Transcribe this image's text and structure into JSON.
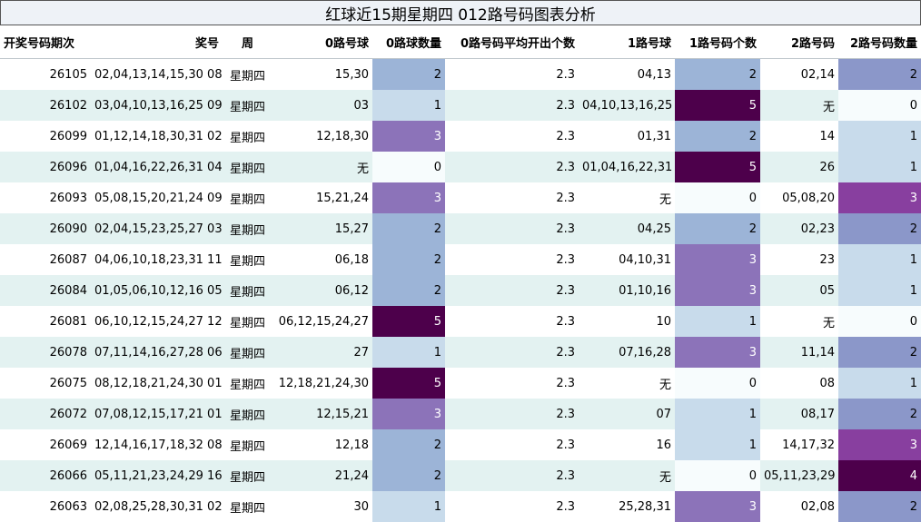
{
  "title": "红球近15期星期四 012路号码图表分析",
  "columns": [
    "开奖号码期次",
    "奖号",
    "周",
    "0路号球",
    "0路球数量",
    "0路号码平均开出个数",
    "1路号球",
    "1路号码个数",
    "2路号码",
    "2路号码数量"
  ],
  "colors": {
    "count_0": "#f7fcfd",
    "count_1": "#c8dbeb",
    "count_2": "#9cb4d7",
    "count_3": "#8c73b9",
    "count_4": "#4d004b",
    "count_5": "#4d004b",
    "count_2_col10": "#8b97c9",
    "count_3_col10": "#883f9f"
  },
  "rows": [
    {
      "issue": "26105",
      "numbers": "02,04,13,14,15,30 08",
      "week": "星期四",
      "r0": "15,30",
      "r0n": "2",
      "avg": "2.3",
      "r1": "04,13",
      "r1n": "2",
      "r2": "02,14",
      "r2n": "2"
    },
    {
      "issue": "26102",
      "numbers": "03,04,10,13,16,25 09",
      "week": "星期四",
      "r0": "03",
      "r0n": "1",
      "avg": "2.3",
      "r1": "04,10,13,16,25",
      "r1n": "5",
      "r2": "无",
      "r2n": "0"
    },
    {
      "issue": "26099",
      "numbers": "01,12,14,18,30,31 02",
      "week": "星期四",
      "r0": "12,18,30",
      "r0n": "3",
      "avg": "2.3",
      "r1": "01,31",
      "r1n": "2",
      "r2": "14",
      "r2n": "1"
    },
    {
      "issue": "26096",
      "numbers": "01,04,16,22,26,31 04",
      "week": "星期四",
      "r0": "无",
      "r0n": "0",
      "avg": "2.3",
      "r1": "01,04,16,22,31",
      "r1n": "5",
      "r2": "26",
      "r2n": "1"
    },
    {
      "issue": "26093",
      "numbers": "05,08,15,20,21,24 09",
      "week": "星期四",
      "r0": "15,21,24",
      "r0n": "3",
      "avg": "2.3",
      "r1": "无",
      "r1n": "0",
      "r2": "05,08,20",
      "r2n": "3"
    },
    {
      "issue": "26090",
      "numbers": "02,04,15,23,25,27 03",
      "week": "星期四",
      "r0": "15,27",
      "r0n": "2",
      "avg": "2.3",
      "r1": "04,25",
      "r1n": "2",
      "r2": "02,23",
      "r2n": "2"
    },
    {
      "issue": "26087",
      "numbers": "04,06,10,18,23,31 11",
      "week": "星期四",
      "r0": "06,18",
      "r0n": "2",
      "avg": "2.3",
      "r1": "04,10,31",
      "r1n": "3",
      "r2": "23",
      "r2n": "1"
    },
    {
      "issue": "26084",
      "numbers": "01,05,06,10,12,16 05",
      "week": "星期四",
      "r0": "06,12",
      "r0n": "2",
      "avg": "2.3",
      "r1": "01,10,16",
      "r1n": "3",
      "r2": "05",
      "r2n": "1"
    },
    {
      "issue": "26081",
      "numbers": "06,10,12,15,24,27 12",
      "week": "星期四",
      "r0": "06,12,15,24,27",
      "r0n": "5",
      "avg": "2.3",
      "r1": "10",
      "r1n": "1",
      "r2": "无",
      "r2n": "0"
    },
    {
      "issue": "26078",
      "numbers": "07,11,14,16,27,28 06",
      "week": "星期四",
      "r0": "27",
      "r0n": "1",
      "avg": "2.3",
      "r1": "07,16,28",
      "r1n": "3",
      "r2": "11,14",
      "r2n": "2"
    },
    {
      "issue": "26075",
      "numbers": "08,12,18,21,24,30 01",
      "week": "星期四",
      "r0": "12,18,21,24,30",
      "r0n": "5",
      "avg": "2.3",
      "r1": "无",
      "r1n": "0",
      "r2": "08",
      "r2n": "1"
    },
    {
      "issue": "26072",
      "numbers": "07,08,12,15,17,21 01",
      "week": "星期四",
      "r0": "12,15,21",
      "r0n": "3",
      "avg": "2.3",
      "r1": "07",
      "r1n": "1",
      "r2": "08,17",
      "r2n": "2"
    },
    {
      "issue": "26069",
      "numbers": "12,14,16,17,18,32 08",
      "week": "星期四",
      "r0": "12,18",
      "r0n": "2",
      "avg": "2.3",
      "r1": "16",
      "r1n": "1",
      "r2": "14,17,32",
      "r2n": "3"
    },
    {
      "issue": "26066",
      "numbers": "05,11,21,23,24,29 16",
      "week": "星期四",
      "r0": "21,24",
      "r0n": "2",
      "avg": "2.3",
      "r1": "无",
      "r1n": "0",
      "r2": "05,11,23,29",
      "r2n": "4"
    },
    {
      "issue": "26063",
      "numbers": "02,08,25,28,30,31 02",
      "week": "星期四",
      "r0": "30",
      "r0n": "1",
      "avg": "2.3",
      "r1": "25,28,31",
      "r1n": "3",
      "r2": "02,08",
      "r2n": "2"
    }
  ]
}
